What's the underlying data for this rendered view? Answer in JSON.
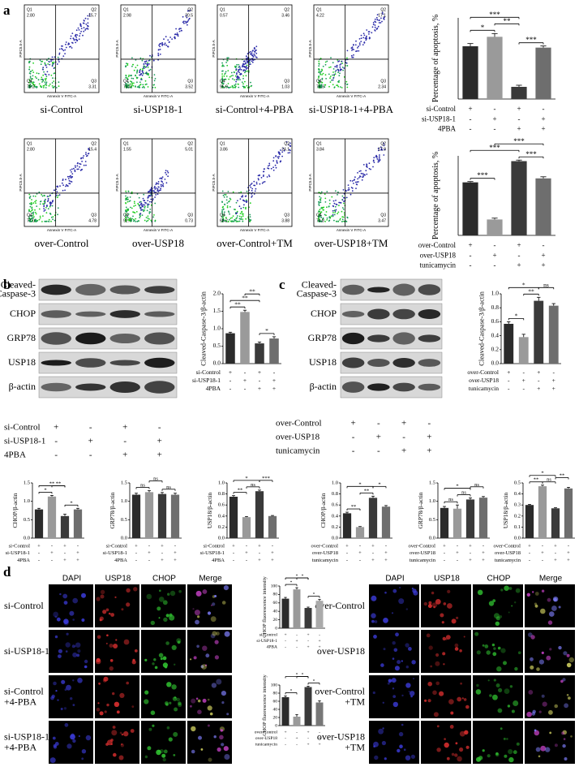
{
  "panel_letters": [
    "a",
    "b",
    "c",
    "d"
  ],
  "flow": {
    "xlabel": "Annexin V FITC-A",
    "ylabel": "PIPC5.5-A",
    "quadrants": [
      "Q1",
      "Q2",
      "Q3",
      "Q4"
    ],
    "plots": [
      {
        "caption": "si-Control",
        "q": [
          "2.80",
          "15.7",
          "3.31",
          "78.2"
        ]
      },
      {
        "caption": "si-USP18-1",
        "q": [
          "2.98",
          "20.5",
          "3.52",
          "73.0"
        ]
      },
      {
        "caption": "si-Control+4-PBA",
        "q": [
          "0.57",
          "3.46",
          "1.03",
          "95.0"
        ]
      },
      {
        "caption": "si-USP18-1+4-PBA",
        "q": [
          "4.22",
          "17.1",
          "2.34",
          "76.3"
        ]
      },
      {
        "caption": "over-Control",
        "q": [
          "2.80",
          "15.4",
          "4.78",
          "77.0"
        ]
      },
      {
        "caption": "over-USP18",
        "q": [
          "1.55",
          "5.01",
          "0.73",
          "92.7"
        ]
      },
      {
        "caption": "over-Control+TM",
        "q": [
          "3.86",
          "24.1",
          "3.88",
          "68.2"
        ]
      },
      {
        "caption": "over-USP18+TM",
        "q": [
          "3.84",
          "17.9",
          "3.47",
          "74.8"
        ]
      }
    ]
  },
  "blots": [
    {
      "rows": [
        [
          "Cleaved-",
          "Caspase-3"
        ],
        [
          "CHOP"
        ],
        [
          "GRP78"
        ],
        [
          "USP18"
        ],
        [
          "β-actin"
        ]
      ],
      "conditions": [
        {
          "name": "si-Control",
          "signs": [
            "+",
            "-",
            "+",
            "-"
          ]
        },
        {
          "name": "si-USP18-1",
          "signs": [
            "-",
            "+",
            "-",
            "+"
          ]
        },
        {
          "name": "4PBA",
          "signs": [
            "-",
            "-",
            "+",
            "+"
          ]
        }
      ]
    },
    {
      "rows": [
        [
          "Cleaved-",
          "Caspase-3"
        ],
        [
          "CHOP"
        ],
        [
          "GRP78"
        ],
        [
          "USP18"
        ],
        [
          "β-actin"
        ]
      ],
      "conditions": [
        {
          "name": "over-Control",
          "signs": [
            "+",
            "-",
            "+",
            "-"
          ]
        },
        {
          "name": "over-USP18",
          "signs": [
            "-",
            "+",
            "-",
            "+"
          ]
        },
        {
          "name": "tunicamycin",
          "signs": [
            "-",
            "-",
            "+",
            "+"
          ]
        }
      ]
    }
  ],
  "microscopy": [
    {
      "columns": [
        "DAPI",
        "USP18",
        "CHOP",
        "Merge"
      ],
      "rows": [
        [
          "si-Control"
        ],
        [
          "si-USP18-1"
        ],
        [
          "si-Control",
          "+4-PBA"
        ],
        [
          "si-USP18-1",
          "+4-PBA"
        ]
      ]
    },
    {
      "columns": [
        "DAPI",
        "USP18",
        "CHOP",
        "Merge"
      ],
      "rows": [
        [
          "over-Control"
        ],
        [
          "over-USP18"
        ],
        [
          "over-Control",
          "+TM"
        ],
        [
          "over-USP18",
          "+TM"
        ]
      ]
    }
  ],
  "chart_data": [
    {
      "type": "bar",
      "ylabel": "Percentage of apoptosis, %",
      "values": [
        19.5,
        23,
        4.5,
        19
      ],
      "errors": [
        1,
        1.2,
        0.6,
        0.6
      ],
      "colors": [
        "#2b2b2b",
        "#9a9a9a",
        "#3a3a3a",
        "#6e6e6e"
      ],
      "ylim": [
        0,
        30
      ],
      "significance": [
        "*",
        "***",
        "**",
        "***"
      ],
      "conditions": [
        {
          "name": "si-Control",
          "signs": [
            "+",
            "-",
            "+",
            "-"
          ]
        },
        {
          "name": "si-USP18-1",
          "signs": [
            "-",
            "+",
            "-",
            "+"
          ]
        },
        {
          "name": "4PBA",
          "signs": [
            "-",
            "-",
            "+",
            "+"
          ]
        }
      ]
    },
    {
      "type": "bar",
      "ylabel": "Percentage of apoptosis, %",
      "values": [
        20,
        6,
        28,
        21.5
      ],
      "errors": [
        0.3,
        0.5,
        0.4,
        0.6
      ],
      "colors": [
        "#2b2b2b",
        "#9a9a9a",
        "#3a3a3a",
        "#6e6e6e"
      ],
      "ylim": [
        0,
        30
      ],
      "significance": [
        "***",
        "***",
        "***",
        "***"
      ],
      "conditions": [
        {
          "name": "over-Control",
          "signs": [
            "+",
            "-",
            "+",
            "-"
          ]
        },
        {
          "name": "over-USP18",
          "signs": [
            "-",
            "+",
            "-",
            "+"
          ]
        },
        {
          "name": "tunicamycin",
          "signs": [
            "-",
            "-",
            "+",
            "+"
          ]
        }
      ]
    },
    {
      "type": "bar",
      "ylabel": "Cleaved-Caspase-3/β-actin",
      "values": [
        0.87,
        1.48,
        0.58,
        0.72
      ],
      "errors": [
        0.03,
        0.05,
        0.04,
        0.05
      ],
      "colors": [
        "#2b2b2b",
        "#9a9a9a",
        "#3a3a3a",
        "#6e6e6e"
      ],
      "ylim": [
        0,
        2
      ],
      "yticks": [
        {
          "value": 0,
          "label": "0.0"
        },
        0.5,
        {
          "value": 1,
          "label": "1.0"
        },
        1.5,
        {
          "value": 2,
          "label": "2.0"
        }
      ],
      "significance": [
        "**",
        "**",
        "**",
        "*"
      ],
      "conditions": [
        {
          "name": "si-Control",
          "signs": [
            "+",
            "-",
            "+",
            "-"
          ]
        },
        {
          "name": "si-USP18-1",
          "signs": [
            "-",
            "+",
            "-",
            "+"
          ]
        },
        {
          "name": "4PBA",
          "signs": [
            "-",
            "-",
            "+",
            "+"
          ]
        }
      ]
    },
    {
      "type": "bar",
      "ylabel": "Cleaved-Caspase-3/β-actin",
      "values": [
        0.57,
        0.38,
        0.9,
        0.83
      ],
      "errors": [
        0.03,
        0.04,
        0.05,
        0.03
      ],
      "colors": [
        "#2b2b2b",
        "#9a9a9a",
        "#3a3a3a",
        "#6e6e6e"
      ],
      "ylim": [
        0,
        1
      ],
      "yticks": [
        {
          "value": 0,
          "label": "0.0"
        },
        0.2,
        0.4,
        0.6,
        0.8,
        {
          "value": 1,
          "label": "1.0"
        }
      ],
      "significance": [
        "*",
        "**",
        "*",
        "ns"
      ],
      "conditions": [
        {
          "name": "over-Control",
          "signs": [
            "+",
            "-",
            "+",
            "-"
          ]
        },
        {
          "name": "over-USP18",
          "signs": [
            "-",
            "+",
            "-",
            "+"
          ]
        },
        {
          "name": "tunicamycin",
          "signs": [
            "-",
            "-",
            "+",
            "+"
          ]
        }
      ]
    },
    {
      "type": "bar",
      "ylabel": "CHOP/β-actin",
      "values": [
        0.78,
        1.13,
        0.6,
        0.78
      ],
      "errors": [
        0.03,
        0.03,
        0.05,
        0.03
      ],
      "colors": [
        "#2b2b2b",
        "#9a9a9a",
        "#3a3a3a",
        "#6e6e6e"
      ],
      "ylim": [
        0,
        1.5
      ],
      "yticks": [
        {
          "value": 0,
          "label": "0.0"
        },
        0.5,
        {
          "value": 1,
          "label": "1.0"
        },
        1.5
      ],
      "significance": [
        "*",
        "**",
        "**",
        "*"
      ],
      "conditions": [
        {
          "name": "si-Control",
          "signs": [
            "+",
            "-",
            "+",
            "-"
          ]
        },
        {
          "name": "si-USP18-1",
          "signs": [
            "-",
            "+",
            "-",
            "+"
          ]
        },
        {
          "name": "4PBA",
          "signs": [
            "-",
            "-",
            "+",
            "+"
          ]
        }
      ]
    },
    {
      "type": "bar",
      "ylabel": "GRP78/β-actin",
      "values": [
        1.18,
        1.25,
        1.2,
        1.18
      ],
      "errors": [
        0.04,
        0.04,
        0.04,
        0.04
      ],
      "colors": [
        "#2b2b2b",
        "#9a9a9a",
        "#3a3a3a",
        "#6e6e6e"
      ],
      "ylim": [
        0,
        1.5
      ],
      "yticks": [
        {
          "value": 0,
          "label": "0.0"
        },
        0.5,
        {
          "value": 1,
          "label": "1.0"
        },
        1.5
      ],
      "significance": [
        "ns",
        "ns",
        "ns"
      ],
      "conditions": [
        {
          "name": "si-Control",
          "signs": [
            "+",
            "-",
            "+",
            "-"
          ]
        },
        {
          "name": "si-USP18-1",
          "signs": [
            "-",
            "+",
            "-",
            "+"
          ]
        },
        {
          "name": "4PBA",
          "signs": [
            "-",
            "-",
            "+",
            "+"
          ]
        }
      ]
    },
    {
      "type": "bar",
      "ylabel": "USP18/β-actin",
      "values": [
        0.75,
        0.38,
        0.85,
        0.4
      ],
      "errors": [
        0.02,
        0.01,
        0.02,
        0.01
      ],
      "colors": [
        "#2b2b2b",
        "#9a9a9a",
        "#3a3a3a",
        "#6e6e6e"
      ],
      "ylim": [
        0,
        1
      ],
      "yticks": [
        {
          "value": 0,
          "label": "0.0"
        },
        0.2,
        0.4,
        0.6,
        0.8,
        {
          "value": 1,
          "label": "1.0"
        }
      ],
      "significance": [
        "**",
        "*",
        "ns",
        "***"
      ],
      "conditions": [
        {
          "name": "si-Control",
          "signs": [
            "+",
            "-",
            "+",
            "-"
          ]
        },
        {
          "name": "si-USP18-1",
          "signs": [
            "-",
            "+",
            "-",
            "+"
          ]
        },
        {
          "name": "4PBA",
          "signs": [
            "-",
            "-",
            "+",
            "+"
          ]
        }
      ]
    },
    {
      "type": "bar",
      "ylabel": "CHOP/β-actin",
      "values": [
        0.45,
        0.2,
        0.73,
        0.57
      ],
      "errors": [
        0.02,
        0.01,
        0.03,
        0.02
      ],
      "colors": [
        "#2b2b2b",
        "#9a9a9a",
        "#3a3a3a",
        "#6e6e6e"
      ],
      "ylim": [
        0,
        1
      ],
      "yticks": [
        {
          "value": 0,
          "label": "0.0"
        },
        0.2,
        0.4,
        0.6,
        0.8,
        {
          "value": 1,
          "label": "1.0"
        }
      ],
      "significance": [
        "**",
        "**",
        "*",
        "*"
      ],
      "conditions": [
        {
          "name": "over-Control",
          "signs": [
            "+",
            "-",
            "+",
            "-"
          ]
        },
        {
          "name": "over-USP18",
          "signs": [
            "-",
            "+",
            "-",
            "+"
          ]
        },
        {
          "name": "tunicamycin",
          "signs": [
            "-",
            "-",
            "+",
            "+"
          ]
        }
      ]
    },
    {
      "type": "bar",
      "ylabel": "GRP78/β-actin",
      "values": [
        0.82,
        0.8,
        1.05,
        1.1
      ],
      "errors": [
        0.04,
        0.1,
        0.04,
        0.03
      ],
      "colors": [
        "#2b2b2b",
        "#9a9a9a",
        "#3a3a3a",
        "#6e6e6e"
      ],
      "ylim": [
        0,
        1.5
      ],
      "yticks": [
        {
          "value": 0,
          "label": "0.0"
        },
        0.5,
        {
          "value": 1,
          "label": "1.0"
        },
        1.5
      ],
      "significance": [
        "ns",
        "ns",
        "*",
        "ns"
      ],
      "conditions": [
        {
          "name": "over-Control",
          "signs": [
            "+",
            "-",
            "+",
            "-"
          ]
        },
        {
          "name": "over-USP18",
          "signs": [
            "-",
            "+",
            "-",
            "+"
          ]
        },
        {
          "name": "tunicamycin",
          "signs": [
            "-",
            "-",
            "+",
            "+"
          ]
        }
      ]
    },
    {
      "type": "bar",
      "ylabel": "USP18/β-actin",
      "values": [
        0.3,
        0.47,
        0.27,
        0.45
      ],
      "errors": [
        0.005,
        0.01,
        0.005,
        0.01
      ],
      "colors": [
        "#2b2b2b",
        "#9a9a9a",
        "#3a3a3a",
        "#6e6e6e"
      ],
      "ylim": [
        0,
        0.5
      ],
      "yticks": [
        {
          "value": 0,
          "label": "0.0"
        },
        0.1,
        0.2,
        0.3,
        0.4,
        0.5
      ],
      "significance": [
        "**",
        "*",
        "ns",
        "**"
      ],
      "conditions": [
        {
          "name": "over-Control",
          "signs": [
            "+",
            "-",
            "+",
            "-"
          ]
        },
        {
          "name": "over-USP18",
          "signs": [
            "-",
            "+",
            "-",
            "+"
          ]
        },
        {
          "name": "tunicamycin",
          "signs": [
            "-",
            "-",
            "+",
            "+"
          ]
        }
      ]
    },
    {
      "type": "bar",
      "ylabel": "CHOP fluorescence intensity",
      "values": [
        70,
        92,
        48,
        65
      ],
      "errors": [
        3,
        4,
        2,
        3
      ],
      "colors": [
        "#2b2b2b",
        "#9a9a9a",
        "#3a3a3a",
        "#aaaaaa"
      ],
      "ylim": [
        0,
        100
      ],
      "yticks": [
        0,
        20,
        40,
        60,
        80,
        100
      ],
      "significance": [
        "*",
        "*",
        "*",
        "*"
      ],
      "conditions": [
        {
          "name": "si-Control",
          "signs": [
            "+",
            "-",
            "+",
            "-"
          ]
        },
        {
          "name": "si-USP18-1",
          "signs": [
            "-",
            "+",
            "-",
            "+"
          ]
        },
        {
          "name": "4PBA",
          "signs": [
            "-",
            "-",
            "+",
            "+"
          ]
        }
      ]
    },
    {
      "type": "bar",
      "ylabel": "CHOP fluorescence intensity",
      "values": [
        70,
        22,
        95,
        57
      ],
      "errors": [
        3,
        5,
        2,
        4
      ],
      "colors": [
        "#2b2b2b",
        "#9a9a9a",
        "#3a3a3a",
        "#777777"
      ],
      "ylim": [
        0,
        100
      ],
      "yticks": [
        0,
        20,
        40,
        60,
        80,
        100
      ],
      "significance": [
        "*",
        "*",
        "*",
        "*"
      ],
      "conditions": [
        {
          "name": "over-Control",
          "signs": [
            "+",
            "-",
            "+",
            "-"
          ]
        },
        {
          "name": "over-USP18",
          "signs": [
            "-",
            "+",
            "-",
            "+"
          ]
        },
        {
          "name": "tunicamycin",
          "signs": [
            "-",
            "-",
            "+",
            "+"
          ]
        }
      ]
    }
  ]
}
